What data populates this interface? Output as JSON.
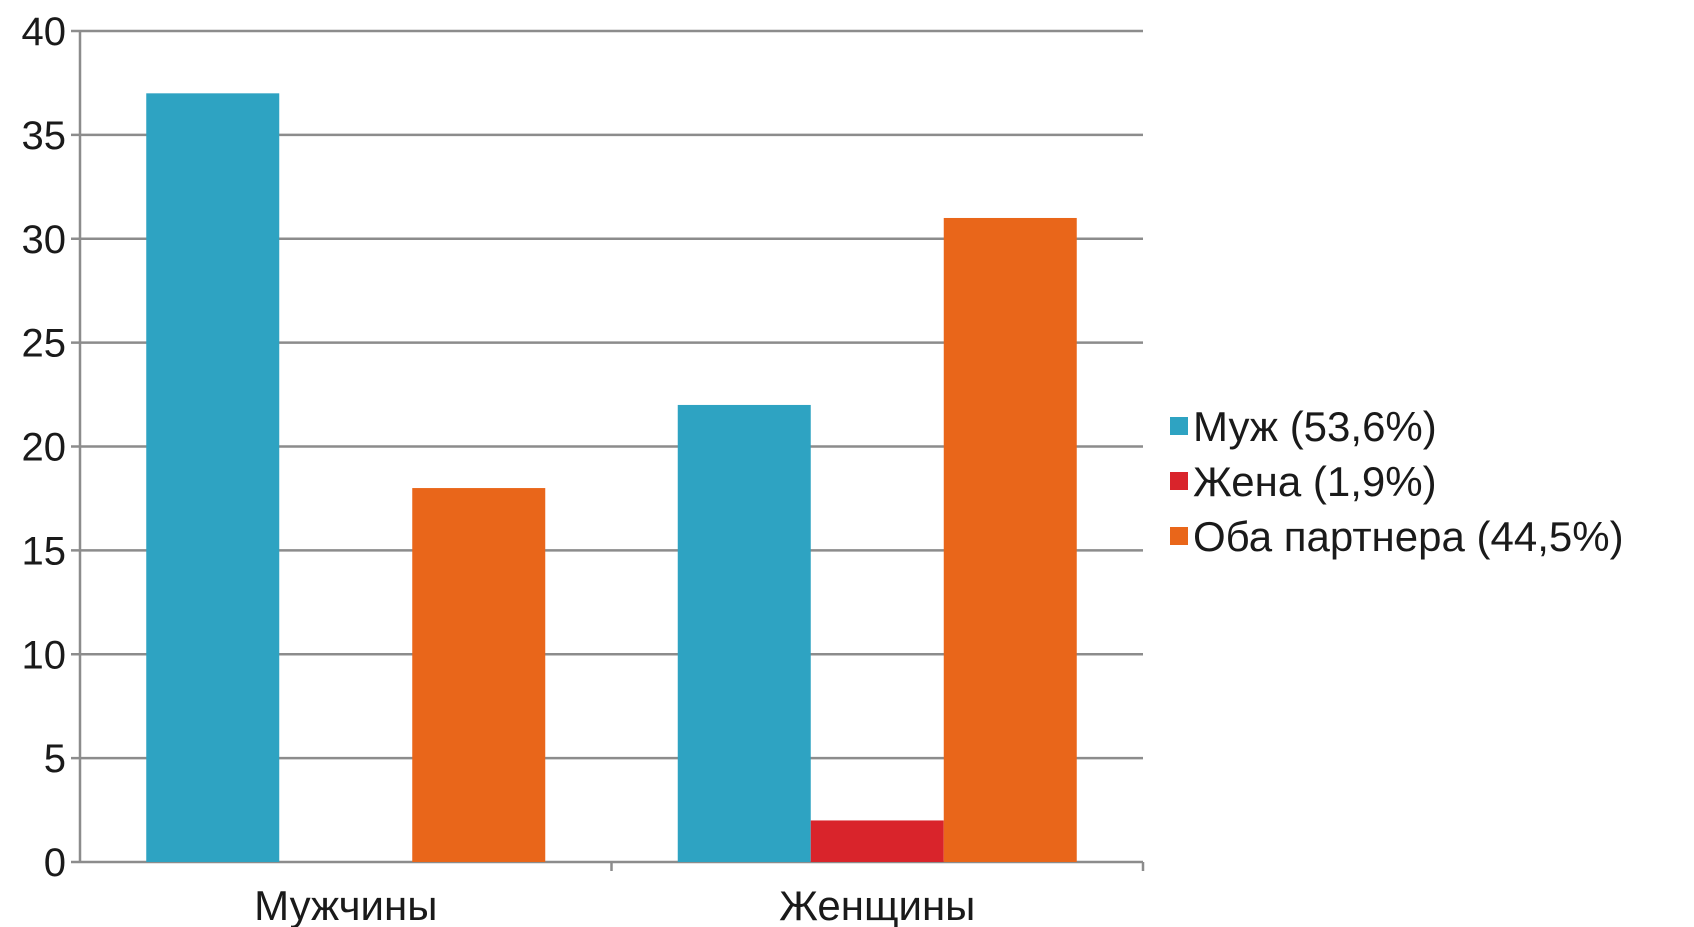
{
  "chart_data": {
    "type": "bar",
    "categories": [
      "Мужчины",
      "Женщины"
    ],
    "series": [
      {
        "name": "Муж (53,6%)",
        "values": [
          37,
          22
        ],
        "color": "#2ea3c2"
      },
      {
        "name": "Жена (1,9%)",
        "values": [
          0,
          2
        ],
        "color": "#d9242b"
      },
      {
        "name": "Оба партнера (44,5%)",
        "values": [
          18,
          31
        ],
        "color": "#e9661a"
      }
    ],
    "yticks": [
      "0",
      "5",
      "10",
      "15",
      "20",
      "25",
      "30",
      "35",
      "40"
    ],
    "ylim": [
      0,
      40
    ],
    "grid": true,
    "legend_position": "right",
    "gridline_color": "#8c8c8c",
    "axis_color": "#8c8c8c"
  }
}
